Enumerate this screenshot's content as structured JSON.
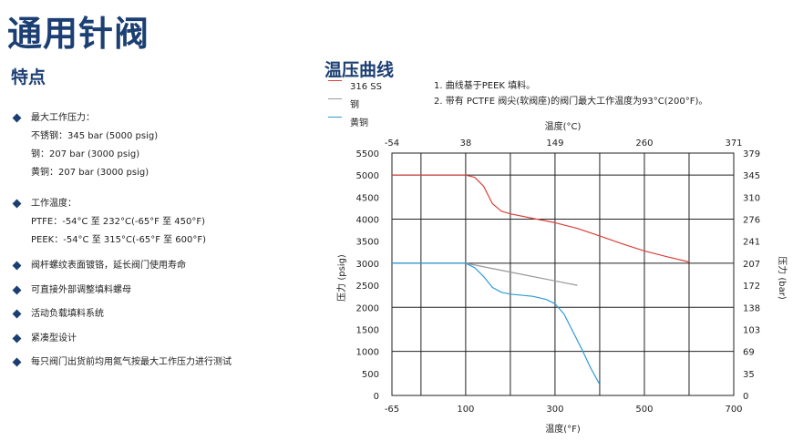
{
  "page_title": "通用针阀",
  "features": {
    "heading": "特点",
    "items": [
      {
        "title": "最大工作压力：",
        "sub": [
          "不锈钢：345 bar (5000 psig)",
          "钢：207 bar (3000 psig)",
          "黄铜：207 bar (3000 psig)"
        ]
      },
      {
        "title": "工作温度：",
        "sub": [
          "PTFE：-54°C 至 232°C(-65°F 至 450°F)",
          "PEEK：-54°C 至 315°C(-65°F 至 600°F)"
        ]
      },
      {
        "title": "阀杆螺纹表面镀铬，延长阀门使用寿命",
        "sub": []
      },
      {
        "title": "可直接外部调整填料螺母",
        "sub": []
      },
      {
        "title": "活动负载填料系统",
        "sub": []
      },
      {
        "title": "紧凑型设计",
        "sub": []
      },
      {
        "title": "每只阀门出货前均用氮气按最大工作压力进行测试",
        "sub": []
      }
    ]
  },
  "chart_heading": "温压曲线",
  "notes": [
    "1. 曲线基于PEEK 填料。",
    "2. 带有 PCTFE 阀尖(软阀座)的阀门最大工作温度为93°C(200°F)。"
  ],
  "colors": {
    "brand": "#1c3f73",
    "ss316": "#d9413a",
    "steel": "#999999",
    "brass": "#2e9bd6",
    "grid": "#222222"
  },
  "chart_data": {
    "type": "line",
    "title": "温压曲线",
    "xlabel": "温度(°F)",
    "ylabel": "压力 (psig)",
    "x2label": "温度(°C)",
    "y2label": "压力 (bar)",
    "xlim": [
      -65,
      700
    ],
    "ylim": [
      0,
      5500
    ],
    "x_ticks": [
      -65,
      100,
      300,
      500,
      700
    ],
    "x2_ticks": [
      "-54",
      "38",
      "149",
      "260",
      "371"
    ],
    "y_ticks": [
      0,
      500,
      1000,
      1500,
      2000,
      2500,
      3000,
      3500,
      4000,
      4500,
      5000,
      5500
    ],
    "y2_ticks": [
      "0",
      "35",
      "69",
      "103",
      "138",
      "172",
      "207",
      "241",
      "276",
      "310",
      "345",
      "379"
    ],
    "grid": true,
    "legend_position": "top-left",
    "series": [
      {
        "name": "316 SS",
        "color": "#d9413a",
        "x": [
          -65,
          100,
          120,
          140,
          160,
          180,
          200,
          250,
          300,
          350,
          400,
          450,
          500,
          550,
          600
        ],
        "y": [
          5000,
          5000,
          4950,
          4750,
          4350,
          4180,
          4120,
          4020,
          3920,
          3790,
          3620,
          3440,
          3280,
          3150,
          3030
        ]
      },
      {
        "name": "钢",
        "color": "#999999",
        "x": [
          -65,
          100,
          200,
          300,
          350
        ],
        "y": [
          3000,
          3000,
          2800,
          2600,
          2500
        ]
      },
      {
        "name": "黄铜",
        "color": "#2e9bd6",
        "x": [
          -65,
          100,
          120,
          140,
          160,
          180,
          200,
          250,
          280,
          300,
          320,
          340,
          360,
          380,
          400
        ],
        "y": [
          3000,
          3000,
          2900,
          2700,
          2450,
          2340,
          2300,
          2250,
          2180,
          2080,
          1850,
          1450,
          1050,
          620,
          250
        ]
      }
    ]
  }
}
